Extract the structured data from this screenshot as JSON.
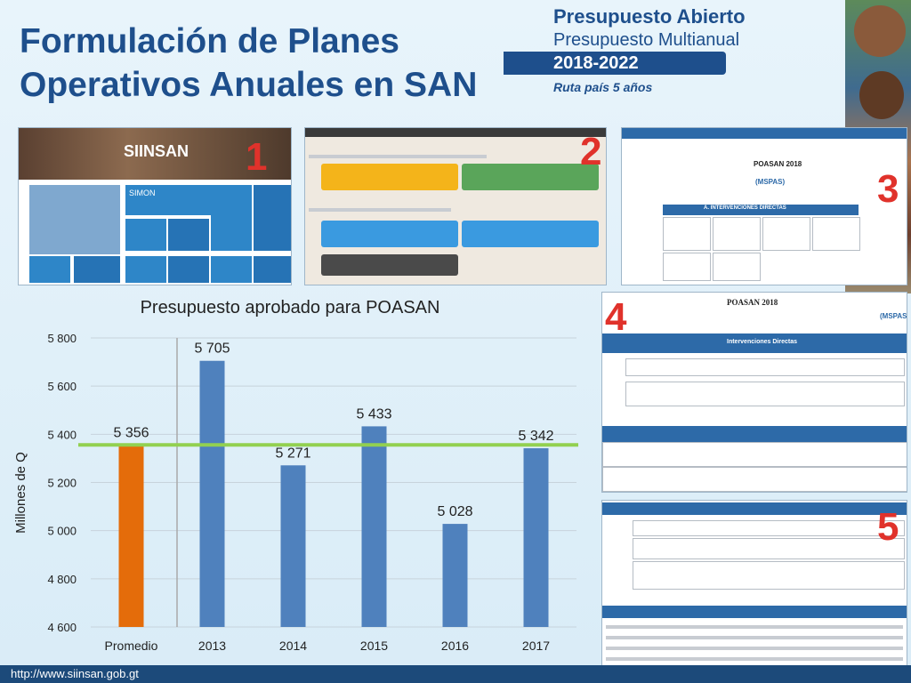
{
  "page": {
    "title_line1": "Formulación de Planes",
    "title_line2": "Operativos Anuales en SAN",
    "footer_url": "http://www.siinsan.gob.gt"
  },
  "brand": {
    "line1": "Presupuesto Abierto",
    "line2": "Presupuesto Multianual",
    "years": "2018-2022",
    "tagline": "Ruta país 5 años",
    "color": "#1e4f8c"
  },
  "thumbnails": {
    "labels": [
      "1",
      "2",
      "3",
      "4",
      "5"
    ],
    "thumb1": {
      "logo": "SIINSAN",
      "tile_simon": "SIMON"
    },
    "thumb3": {
      "heading": "POASAN 2018",
      "subheading": "(MSPAS)",
      "section": "A. INTERVENCIONES DIRECTAS"
    },
    "thumb4": {
      "heading": "POASAN 2018",
      "subheading": "(MSPAS)",
      "band": "Intervenciones Directas"
    }
  },
  "colors": {
    "bar_average": "#e46c0a",
    "bar_year": "#4f81bd",
    "average_line": "#92d050",
    "marker_red": "#e0322b"
  },
  "chart_data": {
    "type": "bar",
    "title": "Presupuesto aprobado para POASAN",
    "ylabel": "Millones de Q",
    "xlabel": "",
    "categories": [
      "Promedio",
      "2013",
      "2014",
      "2015",
      "2016",
      "2017"
    ],
    "values": [
      5356,
      5705,
      5271,
      5433,
      5028,
      5342
    ],
    "value_labels": [
      "5 356",
      "5 705",
      "5 271",
      "5 433",
      "5 028",
      "5 342"
    ],
    "ylim": [
      4600,
      5800
    ],
    "yticks": [
      4600,
      4800,
      5000,
      5200,
      5400,
      5600,
      5800
    ],
    "ytick_labels": [
      "4 600",
      "4 800",
      "5 000",
      "5 200",
      "5 400",
      "5 600",
      "5 800"
    ],
    "reference_line": 5356,
    "grid": true,
    "legend": "none"
  }
}
